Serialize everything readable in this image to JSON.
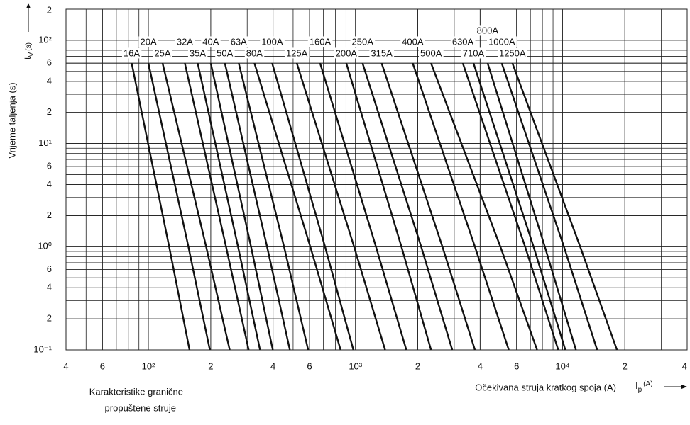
{
  "chart_data": {
    "type": "line",
    "x_label": "Očekivana struja kratkog spoja (A)",
    "y_label": "Vrijeme taljenja (s)",
    "x_symbol": {
      "main": "I",
      "sub": "p",
      "unit": "(A)"
    },
    "y_symbol": {
      "main": "t",
      "sub": "V",
      "unit": "(s)"
    },
    "caption": [
      "Karakteristike granične",
      "propuštene struje"
    ],
    "log_x": true,
    "log_y": true,
    "grid": true,
    "color": "#111111",
    "xlim": [
      40,
      40000
    ],
    "ylim": [
      0.1,
      200
    ],
    "xticks": [
      {
        "value": 40,
        "label": "4"
      },
      {
        "value": 60,
        "label": "6"
      },
      {
        "value": 100,
        "label": "10²"
      },
      {
        "value": 200,
        "label": "2"
      },
      {
        "value": 400,
        "label": "4"
      },
      {
        "value": 600,
        "label": "6"
      },
      {
        "value": 1000,
        "label": "10³"
      },
      {
        "value": 2000,
        "label": "2"
      },
      {
        "value": 4000,
        "label": "4"
      },
      {
        "value": 6000,
        "label": "6"
      },
      {
        "value": 10000,
        "label": "10⁴"
      },
      {
        "value": 20000,
        "label": "2"
      },
      {
        "value": 40000,
        "label": "4"
      }
    ],
    "yticks": [
      {
        "value": 200,
        "label": "2"
      },
      {
        "value": 100,
        "label": "10²"
      },
      {
        "value": 60,
        "label": "6"
      },
      {
        "value": 40,
        "label": "4"
      },
      {
        "value": 20,
        "label": "2"
      },
      {
        "value": 10,
        "label": "10¹"
      },
      6,
      4,
      2,
      {
        "value": 1,
        "label": "10⁰"
      },
      {
        "value": 0.6,
        "label": "6"
      },
      {
        "value": 0.4,
        "label": "4"
      },
      {
        "value": 0.2,
        "label": "2"
      },
      {
        "value": 0.1,
        "label": "10⁻¹"
      }
    ],
    "series": [
      {
        "name": "16A",
        "x": [
          83,
          126,
          158
        ],
        "values": [
          60,
          1,
          0.1
        ]
      },
      {
        "name": "20A",
        "x": [
          100,
          156,
          198
        ],
        "values": [
          60,
          1,
          0.1
        ]
      },
      {
        "name": "25A",
        "x": [
          117,
          190,
          247
        ],
        "values": [
          60,
          1,
          0.1
        ]
      },
      {
        "name": "32A",
        "x": [
          150,
          237,
          305
        ],
        "values": [
          60,
          1,
          0.1
        ]
      },
      {
        "name": "35A",
        "x": [
          173,
          271,
          346
        ],
        "values": [
          60,
          1,
          0.1
        ]
      },
      {
        "name": "40A",
        "x": [
          200,
          313,
          399
        ],
        "values": [
          60,
          1,
          0.1
        ]
      },
      {
        "name": "50A",
        "x": [
          234,
          374,
          482
        ],
        "values": [
          60,
          1,
          0.1
        ]
      },
      {
        "name": "63A",
        "x": [
          273,
          452,
          591
        ],
        "values": [
          60,
          1,
          0.1
        ]
      },
      {
        "name": "80A",
        "x": [
          325,
          605,
          848
        ],
        "values": [
          60,
          1,
          0.1
        ]
      },
      {
        "name": "100A",
        "x": [
          396,
          713,
          977
        ],
        "values": [
          60,
          1,
          0.1
        ]
      },
      {
        "name": "125A",
        "x": [
          521,
          985,
          1391
        ],
        "values": [
          60,
          1,
          0.1
        ]
      },
      {
        "name": "160A",
        "x": [
          675,
          1256,
          1761
        ],
        "values": [
          60,
          1,
          0.1
        ]
      },
      {
        "name": "200A",
        "x": [
          903,
          1667,
          2318
        ],
        "values": [
          60,
          1,
          0.1
        ]
      },
      {
        "name": "250A",
        "x": [
          1082,
          2077,
          2935
        ],
        "values": [
          60,
          1,
          0.1
        ]
      },
      {
        "name": "315A",
        "x": [
          1338,
          2629,
          3775
        ],
        "values": [
          60,
          1,
          0.1
        ]
      },
      {
        "name": "400A",
        "x": [
          1890,
          3775,
          5503
        ],
        "values": [
          60,
          1,
          0.1
        ]
      },
      {
        "name": "500A",
        "x": [
          2318,
          5010,
          7540
        ],
        "values": [
          60,
          1,
          0.1
        ]
      },
      {
        "name": "630A",
        "x": [
          3302,
          6594,
          9540
        ],
        "values": [
          60,
          1,
          0.1
        ]
      },
      {
        "name": "710A",
        "x": [
          3715,
          7244,
          10320
        ],
        "values": [
          60,
          1,
          0.1
        ]
      },
      {
        "name": "800A",
        "x": [
          4347,
          8215,
          11610
        ],
        "values": [
          60,
          1,
          0.1
        ]
      },
      {
        "name": "1000A",
        "x": [
          5088,
          10160,
          14700
        ],
        "values": [
          60,
          1,
          0.1
        ]
      },
      {
        "name": "1250A",
        "x": [
          5726,
          12170,
          18320
        ],
        "values": [
          60,
          1,
          0.1
        ]
      }
    ]
  }
}
